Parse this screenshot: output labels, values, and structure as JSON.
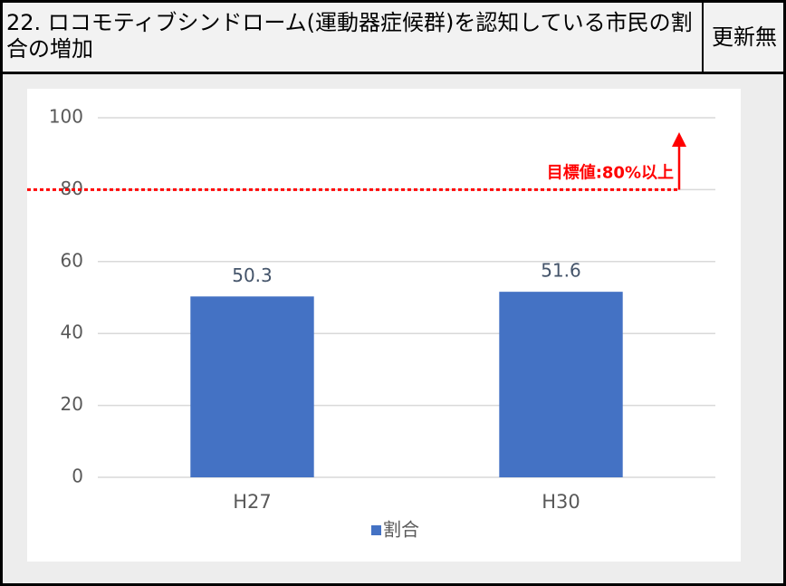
{
  "header": {
    "title": "22. ロコモティブシンドローム(運動器症候群)を認知している市民の割合の増加",
    "status": "更新無"
  },
  "chart_data": {
    "type": "bar",
    "categories": [
      "H27",
      "H30"
    ],
    "series": [
      {
        "name": "割合",
        "color": "#4472c4",
        "values": [
          50.3,
          51.6
        ]
      }
    ],
    "ylim": [
      0,
      100
    ],
    "yticks": [
      0,
      20,
      40,
      60,
      80,
      100
    ],
    "grid": true,
    "target": 80,
    "target_color": "#ff0000",
    "annotation": "目標値:80%以上",
    "legend": "bottom"
  }
}
